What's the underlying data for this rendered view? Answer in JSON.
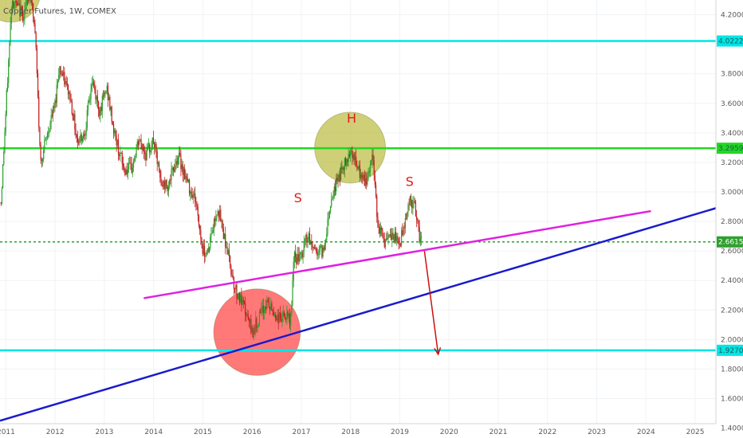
{
  "chart_data": {
    "type": "candlestick",
    "title": "Copper Futures, 1W, COMEX",
    "xlabel": "",
    "ylabel": "",
    "ylim": [
      1.43,
      4.3
    ],
    "xlim": [
      2010.88,
      2025.42
    ],
    "x_ticks": [
      "2011",
      "2012",
      "2013",
      "2014",
      "2015",
      "2016",
      "2017",
      "2018",
      "2019",
      "2020",
      "2021",
      "2022",
      "2023",
      "2024",
      "2025"
    ],
    "y_ticks": [
      "4.2000",
      "3.8000",
      "3.6000",
      "3.4000",
      "3.2000",
      "3.0000",
      "2.8000",
      "2.6000",
      "2.4000",
      "2.2000",
      "2.0000",
      "1.8000",
      "1.6000",
      "1.4000"
    ],
    "price_path": [
      [
        2010.9,
        2.93
      ],
      [
        2011.0,
        3.55
      ],
      [
        2011.12,
        4.3
      ],
      [
        2011.35,
        4.2
      ],
      [
        2011.5,
        4.35
      ],
      [
        2011.6,
        4.05
      ],
      [
        2011.7,
        3.2
      ],
      [
        2011.85,
        3.4
      ],
      [
        2012.0,
        3.6
      ],
      [
        2012.08,
        3.85
      ],
      [
        2012.3,
        3.65
      ],
      [
        2012.45,
        3.35
      ],
      [
        2012.6,
        3.4
      ],
      [
        2012.75,
        3.75
      ],
      [
        2012.9,
        3.55
      ],
      [
        2013.05,
        3.7
      ],
      [
        2013.2,
        3.4
      ],
      [
        2013.4,
        3.15
      ],
      [
        2013.55,
        3.15
      ],
      [
        2013.7,
        3.35
      ],
      [
        2013.85,
        3.25
      ],
      [
        2014.0,
        3.35
      ],
      [
        2014.15,
        3.05
      ],
      [
        2014.3,
        3.05
      ],
      [
        2014.5,
        3.25
      ],
      [
        2014.7,
        3.05
      ],
      [
        2014.85,
        2.95
      ],
      [
        2015.0,
        2.6
      ],
      [
        2015.1,
        2.6
      ],
      [
        2015.3,
        2.9
      ],
      [
        2015.5,
        2.6
      ],
      [
        2015.65,
        2.35
      ],
      [
        2015.85,
        2.2
      ],
      [
        2016.0,
        2.05
      ],
      [
        2016.15,
        2.15
      ],
      [
        2016.3,
        2.25
      ],
      [
        2016.5,
        2.15
      ],
      [
        2016.7,
        2.15
      ],
      [
        2016.78,
        2.12
      ],
      [
        2016.85,
        2.55
      ],
      [
        2017.0,
        2.55
      ],
      [
        2017.1,
        2.7
      ],
      [
        2017.3,
        2.6
      ],
      [
        2017.45,
        2.6
      ],
      [
        2017.6,
        2.95
      ],
      [
        2017.75,
        3.1
      ],
      [
        2017.9,
        3.2
      ],
      [
        2018.0,
        3.3
      ],
      [
        2018.15,
        3.15
      ],
      [
        2018.3,
        3.05
      ],
      [
        2018.45,
        3.25
      ],
      [
        2018.55,
        2.8
      ],
      [
        2018.7,
        2.65
      ],
      [
        2018.85,
        2.7
      ],
      [
        2019.0,
        2.65
      ],
      [
        2019.1,
        2.8
      ],
      [
        2019.2,
        2.95
      ],
      [
        2019.3,
        2.9
      ],
      [
        2019.38,
        2.72
      ],
      [
        2019.45,
        2.6615
      ]
    ],
    "horizontal_levels": [
      {
        "value": 4.0222,
        "label": "4.0222",
        "color": "#00e5e5",
        "style": "solid"
      },
      {
        "value": 3.2959,
        "label": "3.2959",
        "color": "#22d722",
        "style": "solid"
      },
      {
        "value": 2.6615,
        "label": "2.6615",
        "color": "#2ea02e",
        "style": "dotted"
      },
      {
        "value": 1.927,
        "label": "1.9270",
        "color": "#00e5e5",
        "style": "solid"
      }
    ],
    "trendlines": [
      {
        "name": "neckline",
        "color": "#e020e0",
        "from": [
          2013.8,
          2.28
        ],
        "to": [
          2024.1,
          2.87
        ]
      },
      {
        "name": "support",
        "color": "#1a1acc",
        "from": [
          2010.88,
          1.45
        ],
        "to": [
          2025.42,
          2.89
        ]
      },
      {
        "name": "projection",
        "color": "#cc1111",
        "from": [
          2019.5,
          2.6
        ],
        "to": [
          2019.78,
          1.9
        ]
      }
    ],
    "circles": [
      {
        "name": "head-circle",
        "fill": "#b5b530",
        "opacity": 0.65,
        "cx": 2017.99,
        "cy": 3.3,
        "r_years": 0.72
      },
      {
        "name": "top-circle",
        "fill": "#b5b530",
        "opacity": 0.65,
        "cx": 2011.1,
        "cy": 4.35,
        "r_years": 0.6
      },
      {
        "name": "bottom-circle",
        "fill": "#ff2020",
        "opacity": 0.6,
        "cx": 2016.1,
        "cy": 2.05,
        "r_years": 0.88
      }
    ],
    "annotations": [
      {
        "text": "S",
        "x": 2016.93,
        "y": 2.93
      },
      {
        "text": "H",
        "x": 2018.02,
        "y": 3.47
      },
      {
        "text": "S",
        "x": 2019.2,
        "y": 3.04
      }
    ],
    "colors": {
      "up": "#2e9e2e",
      "down": "#c01f1f"
    }
  }
}
